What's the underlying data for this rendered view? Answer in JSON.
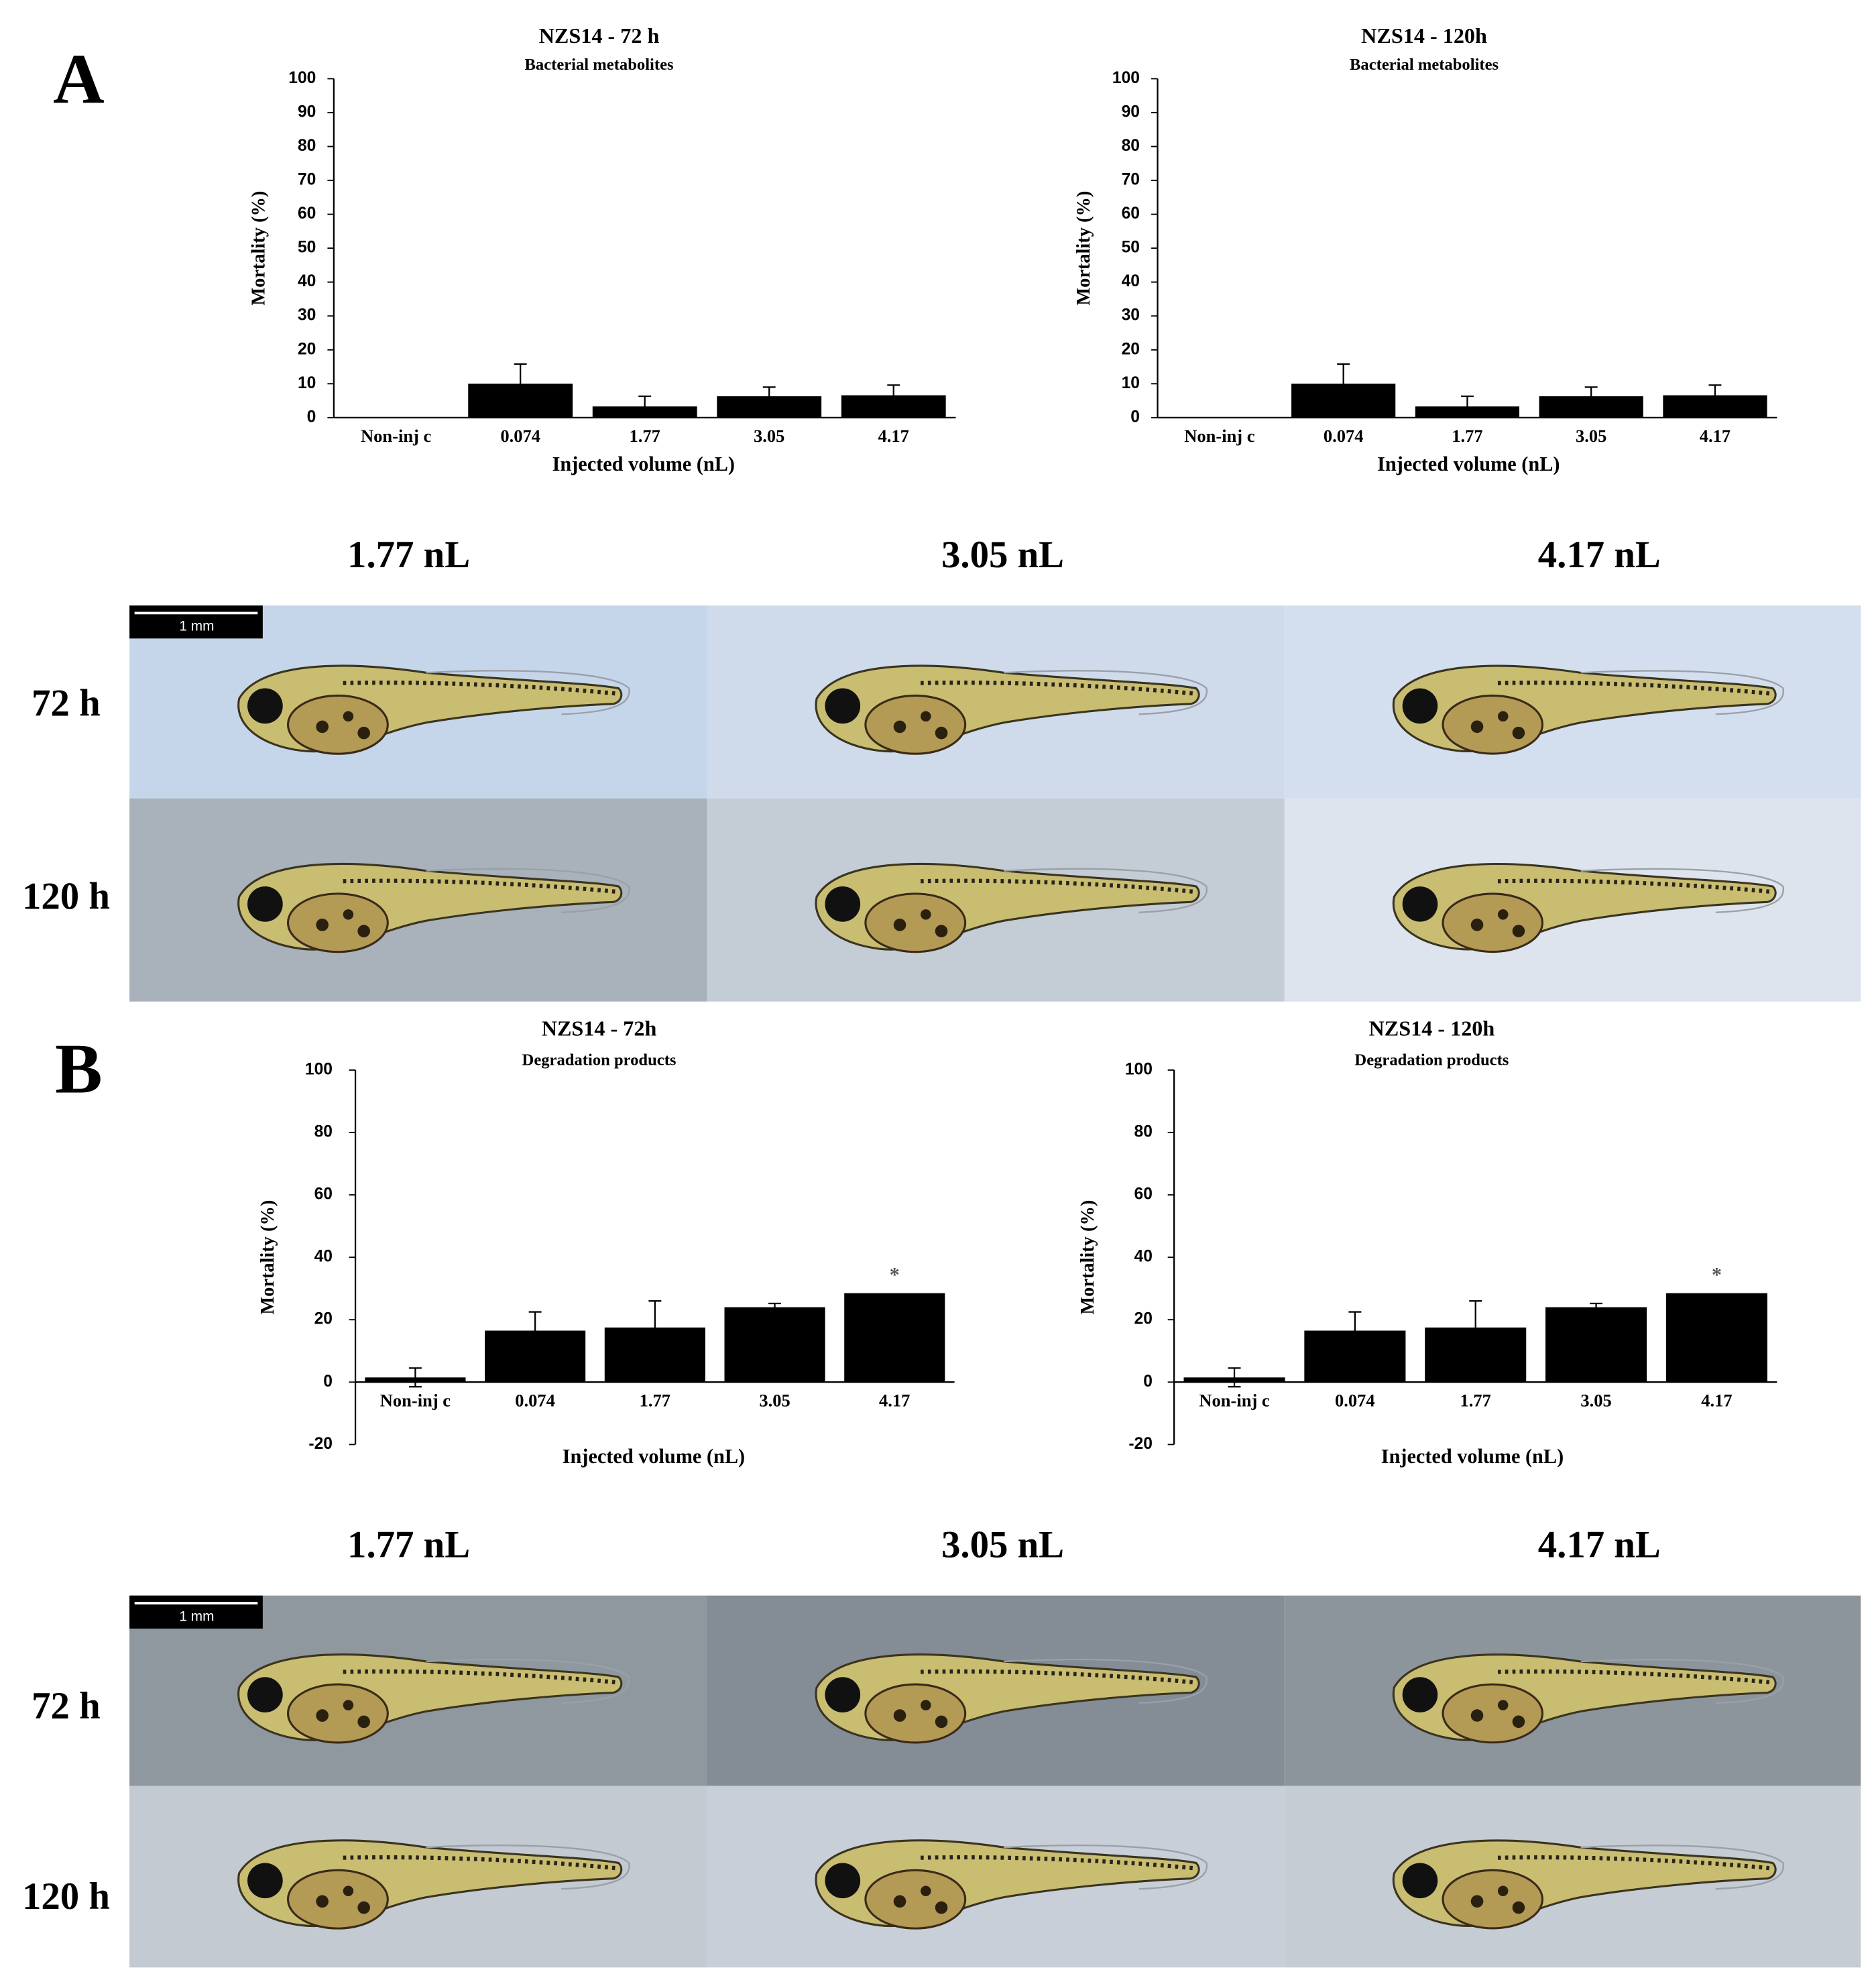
{
  "chart_data": [
    {
      "type": "bar",
      "title": "NZS14 - 72 h",
      "subtitle": "Bacterial metabolites",
      "xlabel": "Injected volume (nL)",
      "ylabel": "Mortality (%)",
      "categories": [
        "Non-inj c",
        "0.074",
        "1.77",
        "3.05",
        "4.17"
      ],
      "values": [
        0,
        10,
        3.3,
        6.3,
        6.6
      ],
      "errors": [
        null,
        5.8,
        3,
        2.7,
        3
      ],
      "color": "#000000",
      "ylim": [
        0,
        100
      ],
      "yticks": [
        0,
        10,
        20,
        30,
        40,
        50,
        60,
        70,
        80,
        90,
        100
      ]
    },
    {
      "type": "bar",
      "title": "NZS14 - 120h",
      "subtitle": "Bacterial metabolites",
      "xlabel": "Injected volume (nL)",
      "ylabel": "Mortality (%)",
      "categories": [
        "Non-inj c",
        "0.074",
        "1.77",
        "3.05",
        "4.17"
      ],
      "values": [
        0,
        10,
        3.3,
        6.3,
        6.6
      ],
      "errors": [
        null,
        5.8,
        3,
        2.7,
        3
      ],
      "color": "#000000",
      "ylim": [
        0,
        100
      ],
      "yticks": [
        0,
        10,
        20,
        30,
        40,
        50,
        60,
        70,
        80,
        90,
        100
      ]
    },
    {
      "type": "bar",
      "title": "NZS14 - 72h",
      "subtitle": "Degradation products",
      "xlabel": "Injected volume (nL)",
      "ylabel": "Mortality (%)",
      "categories": [
        "Non-inj c",
        "0.074",
        "1.77",
        "3.05",
        "4.17"
      ],
      "values": [
        1.5,
        16.5,
        17.5,
        24,
        28.5
      ],
      "errors": [
        3,
        6,
        8.5,
        1.2,
        null
      ],
      "color": "#000000",
      "ylim": [
        -20,
        100
      ],
      "yticks": [
        -20,
        0,
        20,
        40,
        60,
        80,
        100
      ],
      "annotations": [
        {
          "text": "*",
          "category": "4.17"
        }
      ]
    },
    {
      "type": "bar",
      "title": "NZS14 - 120h",
      "subtitle": "Degradation products",
      "xlabel": "Injected volume (nL)",
      "ylabel": "Mortality (%)",
      "categories": [
        "Non-inj c",
        "0.074",
        "1.77",
        "3.05",
        "4.17"
      ],
      "values": [
        1.5,
        16.5,
        17.5,
        24,
        28.5
      ],
      "errors": [
        3,
        6,
        8.5,
        1.2,
        null
      ],
      "color": "#000000",
      "ylim": [
        -20,
        100
      ],
      "yticks": [
        -20,
        0,
        20,
        40,
        60,
        80,
        100
      ],
      "annotations": [
        {
          "text": "*",
          "category": "4.17"
        }
      ]
    }
  ],
  "figure": {
    "panels": [
      {
        "label": "A",
        "columns": [
          "1.77 nL",
          "3.05 nL",
          "4.17 nL"
        ],
        "rows": [
          "72 h",
          "120 h"
        ],
        "scale_bar": "1 mm"
      },
      {
        "label": "B",
        "columns": [
          "1.77 nL",
          "3.05 nL",
          "4.17 nL"
        ],
        "rows": [
          "72 h",
          "120 h"
        ],
        "scale_bar": "1 mm"
      }
    ]
  }
}
